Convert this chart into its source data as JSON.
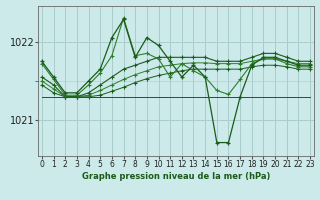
{
  "title": "Graphe pression niveau de la mer (hPa)",
  "bg_color": "#cceaea",
  "grid_color": "#aacccc",
  "line_color_dark": "#1a5c1a",
  "line_color_mid": "#2e7d2e",
  "xlim": [
    -0.3,
    23.3
  ],
  "ylim": [
    1020.55,
    1022.45
  ],
  "yticks": [
    1021,
    1022
  ],
  "xticks": [
    0,
    1,
    2,
    3,
    4,
    5,
    6,
    7,
    8,
    9,
    10,
    11,
    12,
    13,
    14,
    15,
    16,
    17,
    18,
    19,
    20,
    21,
    22,
    23
  ],
  "series_smooth1": [
    1021.55,
    1021.45,
    1021.3,
    1021.3,
    1021.35,
    1021.45,
    1021.55,
    1021.65,
    1021.7,
    1021.75,
    1021.8,
    1021.8,
    1021.8,
    1021.8,
    1021.8,
    1021.75,
    1021.75,
    1021.75,
    1021.8,
    1021.85,
    1021.85,
    1021.8,
    1021.75,
    1021.75
  ],
  "series_smooth2": [
    1021.5,
    1021.4,
    1021.3,
    1021.3,
    1021.32,
    1021.38,
    1021.45,
    1021.52,
    1021.58,
    1021.63,
    1021.68,
    1021.7,
    1021.72,
    1021.73,
    1021.73,
    1021.72,
    1021.72,
    1021.72,
    1021.75,
    1021.78,
    1021.78,
    1021.75,
    1021.72,
    1021.72
  ],
  "series_smooth3": [
    1021.45,
    1021.35,
    1021.3,
    1021.3,
    1021.3,
    1021.32,
    1021.37,
    1021.42,
    1021.48,
    1021.53,
    1021.57,
    1021.6,
    1021.63,
    1021.65,
    1021.65,
    1021.65,
    1021.65,
    1021.65,
    1021.68,
    1021.7,
    1021.7,
    1021.68,
    1021.65,
    1021.65
  ],
  "series_flat": [
    1021.3,
    1021.3,
    1021.3,
    1021.3,
    1021.3,
    1021.3,
    1021.3,
    1021.3,
    1021.3,
    1021.3,
    1021.3,
    1021.3,
    1021.3,
    1021.3,
    1021.3,
    1021.3,
    1021.3,
    1021.3,
    1021.3,
    1021.3,
    1021.3,
    1021.3,
    1021.3,
    1021.3
  ],
  "series_volatile": [
    1021.75,
    1021.55,
    1021.35,
    1021.35,
    1021.5,
    1021.65,
    1022.05,
    1022.28,
    1021.8,
    1022.05,
    1021.95,
    1021.75,
    1021.55,
    1021.7,
    1021.55,
    1020.72,
    1020.72,
    1021.3,
    1021.7,
    1021.8,
    1021.8,
    1021.75,
    1021.7,
    1021.7
  ],
  "series_wavy": [
    1021.72,
    1021.52,
    1021.32,
    1021.32,
    1021.45,
    1021.6,
    1021.82,
    1022.3,
    1021.82,
    1021.85,
    1021.78,
    1021.55,
    1021.72,
    1021.63,
    1021.55,
    1021.38,
    1021.33,
    1021.52,
    1021.72,
    1021.78,
    1021.78,
    1021.72,
    1021.68,
    1021.68
  ]
}
